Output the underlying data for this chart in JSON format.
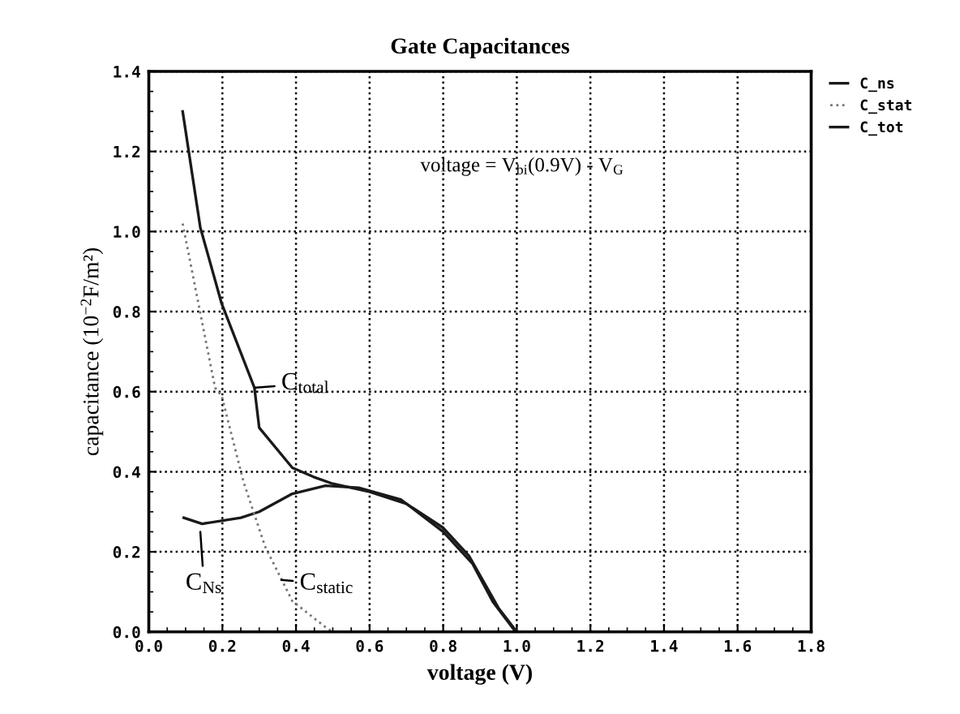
{
  "chart_data": {
    "type": "line",
    "title": "Gate Capacitances",
    "xlabel": "voltage (V)",
    "ylabel": "capacitance (10$^{−2}$F/m²)",
    "xlim": [
      0.0,
      1.8
    ],
    "xticks": [
      {
        "value": 0,
        "label": "0.0"
      },
      0.2,
      0.4,
      0.6,
      0.8,
      {
        "value": 1,
        "label": "1.0"
      },
      1.2,
      1.4,
      1.6,
      1.8
    ],
    "ylim": [
      0.0,
      1.4
    ],
    "yticks": [
      {
        "value": 0,
        "label": "0.0"
      },
      0.2,
      0.4,
      0.6,
      0.8,
      {
        "value": 1,
        "label": "1.0"
      },
      1.2,
      1.4
    ],
    "grid": true,
    "legend": "top right",
    "marker": "none",
    "series": [
      {
        "name": "C_ns",
        "color": "#1a1a1a",
        "line_style": "solid",
        "x": [
          0.095,
          0.145,
          0.25,
          0.3,
          0.39,
          0.48,
          0.57,
          0.686,
          0.8,
          0.88,
          0.935,
          0.997,
          1.05
        ],
        "values": [
          0.285,
          0.27,
          0.285,
          0.3,
          0.345,
          0.365,
          0.36,
          0.33,
          0.25,
          0.17,
          0.075,
          0.0,
          0.0
        ]
      },
      {
        "name": "C_stat",
        "color": "#777777",
        "line_style": "dotted",
        "x": [
          0.092,
          0.18,
          0.198,
          0.257,
          0.316,
          0.39,
          0.48,
          0.5
        ],
        "values": [
          1.02,
          0.61,
          0.59,
          0.376,
          0.213,
          0.077,
          0.012,
          0.0
        ]
      },
      {
        "name": "C_tot",
        "color": "#1a1a1a",
        "line_style": "solid",
        "x": [
          0.092,
          0.14,
          0.198,
          0.287,
          0.3,
          0.39,
          0.448,
          0.5,
          0.6,
          0.7,
          0.8,
          0.87,
          0.95,
          1.0
        ],
        "values": [
          1.3,
          1.01,
          0.82,
          0.61,
          0.51,
          0.41,
          0.387,
          0.37,
          0.35,
          0.32,
          0.26,
          0.19,
          0.06,
          0.0
        ]
      }
    ],
    "annotations": [
      {
        "text": "C$_{total}$",
        "x": 0.29,
        "y": 0.61
      },
      {
        "text": "C$_{Ns}$",
        "x": 0.14,
        "y": 0.25
      },
      {
        "text": "C$_{static}$",
        "x": 0.36,
        "y": 0.13
      },
      "voltage = V$_{bi}$(0.9V) - V$_{G}$"
    ]
  }
}
